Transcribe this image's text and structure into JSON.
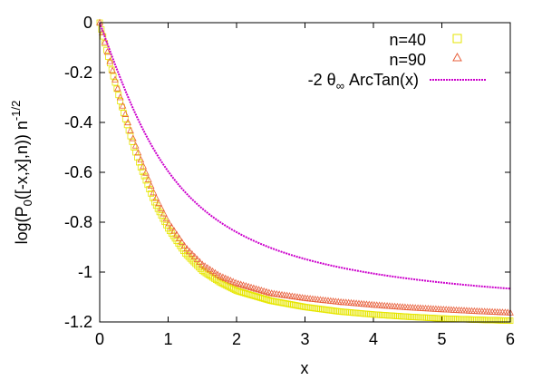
{
  "chart_data": {
    "type": "scatter",
    "xlabel": "x",
    "ylabel": {
      "prefix": "log(P",
      "sub": "0",
      "middle": "([-x,x],n)) n",
      "sup": "-1/2"
    },
    "xlim": [
      0,
      6
    ],
    "ylim": [
      -1.2,
      0
    ],
    "x_ticks": [
      0,
      1,
      2,
      3,
      4,
      5,
      6
    ],
    "y_ticks": [
      0,
      -0.2,
      -0.4,
      -0.6,
      -0.8,
      -1,
      -1.2
    ],
    "x_tick_labels": [
      "0",
      "1",
      "2",
      "3",
      "4",
      "5",
      "6"
    ],
    "y_tick_labels": [
      "0",
      "-0.2",
      "-0.4",
      "-0.6",
      "-0.8",
      "-1",
      "-1.2"
    ],
    "grid": false,
    "legend_position": "top-right",
    "series": [
      {
        "name": "n=40",
        "marker": "square",
        "color": "#e6e600",
        "x": [
          0,
          0.1,
          0.2,
          0.3,
          0.4,
          0.5,
          0.6,
          0.8,
          1.0,
          1.25,
          1.5,
          1.75,
          2.0,
          2.5,
          3.0,
          3.5,
          4.0,
          4.5,
          5.0,
          5.5,
          6.0
        ],
        "y": [
          0,
          -0.11,
          -0.215,
          -0.315,
          -0.41,
          -0.5,
          -0.58,
          -0.72,
          -0.825,
          -0.925,
          -0.995,
          -1.04,
          -1.075,
          -1.115,
          -1.14,
          -1.158,
          -1.17,
          -1.179,
          -1.186,
          -1.191,
          -1.195
        ]
      },
      {
        "name": "n=90",
        "marker": "triangle",
        "color": "#e8603c",
        "x": [
          0,
          0.1,
          0.2,
          0.3,
          0.4,
          0.5,
          0.6,
          0.8,
          1.0,
          1.25,
          1.5,
          1.75,
          2.0,
          2.5,
          3.0,
          3.5,
          4.0,
          4.5,
          5.0,
          5.5,
          6.0
        ],
        "y": [
          0,
          -0.105,
          -0.205,
          -0.3,
          -0.39,
          -0.475,
          -0.55,
          -0.69,
          -0.8,
          -0.9,
          -0.97,
          -1.015,
          -1.045,
          -1.085,
          -1.105,
          -1.12,
          -1.132,
          -1.142,
          -1.15,
          -1.157,
          -1.163
        ]
      },
      {
        "name": "-2 θ∞ ArcTan(x)",
        "name_parts": {
          "prefix": "-2 θ",
          "sub": "∞",
          "suffix": " ArcTan(x)"
        },
        "marker": "line",
        "color": "#cc00cc",
        "coefficient": -0.7587,
        "function": "arctan"
      }
    ]
  }
}
